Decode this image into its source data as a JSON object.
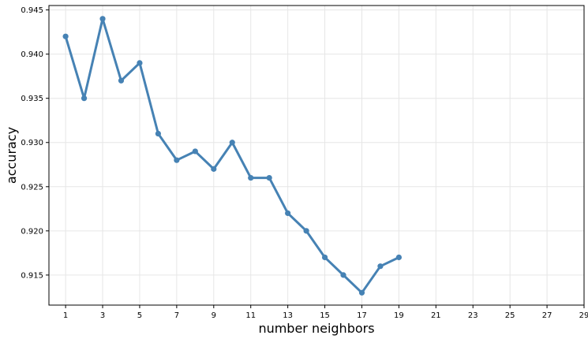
{
  "chart_data": {
    "type": "line",
    "xlabel": "number neighbors",
    "ylabel": "accuracy",
    "x": [
      1,
      2,
      3,
      4,
      5,
      6,
      7,
      8,
      9,
      10,
      11,
      12,
      13,
      14,
      15,
      16,
      17,
      18,
      19
    ],
    "series": [
      {
        "values": [
          0.942,
          0.935,
          0.944,
          0.937,
          0.939,
          0.931,
          0.928,
          0.929,
          0.927,
          0.93,
          0.926,
          0.926,
          0.922,
          0.92,
          0.917,
          0.915,
          0.913,
          0.916,
          0.917
        ],
        "color": "#4682b4",
        "marker": "circle"
      }
    ],
    "xlim": [
      0.1,
      29.0
    ],
    "ylim": [
      0.9116,
      0.9455
    ],
    "xticks": [
      "1",
      "3",
      "5",
      "7",
      "9",
      "11",
      "13",
      "15",
      "17",
      "19",
      "21",
      "23",
      "25",
      "27",
      "29"
    ],
    "yticks": [
      "0.915",
      "0.920",
      "0.925",
      "0.930",
      "0.935",
      "0.940",
      "0.945"
    ],
    "grid": true
  }
}
